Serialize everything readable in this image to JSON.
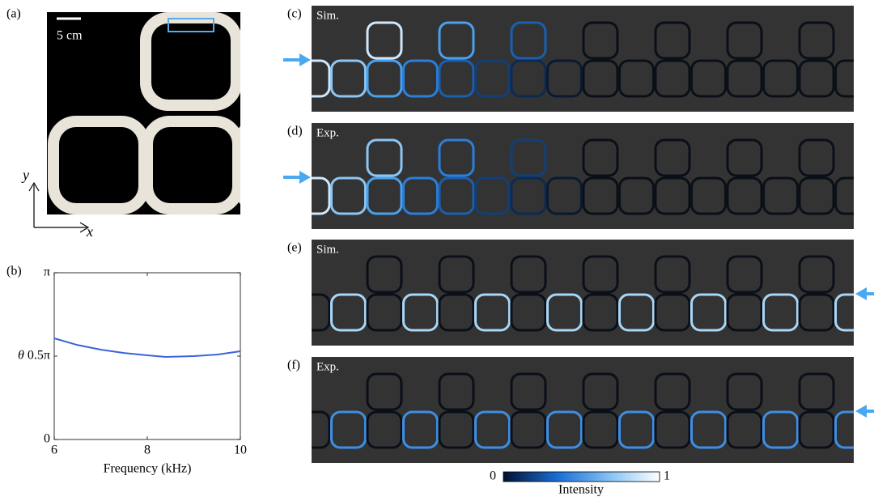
{
  "panels": {
    "a": {
      "label": "(a)",
      "scale_bar": "5 cm",
      "axis_y": "y",
      "axis_x": "x"
    },
    "b": {
      "label": "(b)"
    },
    "c": {
      "label": "(c)",
      "tag": "Sim."
    },
    "d": {
      "label": "(d)",
      "tag": "Exp."
    },
    "e": {
      "label": "(e)",
      "tag": "Sim."
    },
    "f": {
      "label": "(f)",
      "tag": "Exp."
    }
  },
  "colorbar": {
    "ticks": [
      0,
      1
    ],
    "title": "Intensity"
  },
  "chart_data": {
    "type": "line",
    "xlabel": "Frequency (kHz)",
    "ylabel": "θ",
    "x": [
      6,
      6.5,
      7,
      7.5,
      8,
      8.4,
      9,
      9.5,
      10
    ],
    "values": [
      1.906,
      1.78,
      1.693,
      1.63,
      1.586,
      1.555,
      1.571,
      1.6,
      1.662
    ],
    "color": "#3a64d8",
    "xlim": [
      6,
      10
    ],
    "xticks": [
      6,
      8,
      10
    ],
    "ylim": [
      0,
      3.1416
    ],
    "yticks": [
      0,
      {
        "value": 1.5708,
        "label": "0.5π"
      },
      {
        "value": 3.1416,
        "label": "π"
      }
    ]
  }
}
